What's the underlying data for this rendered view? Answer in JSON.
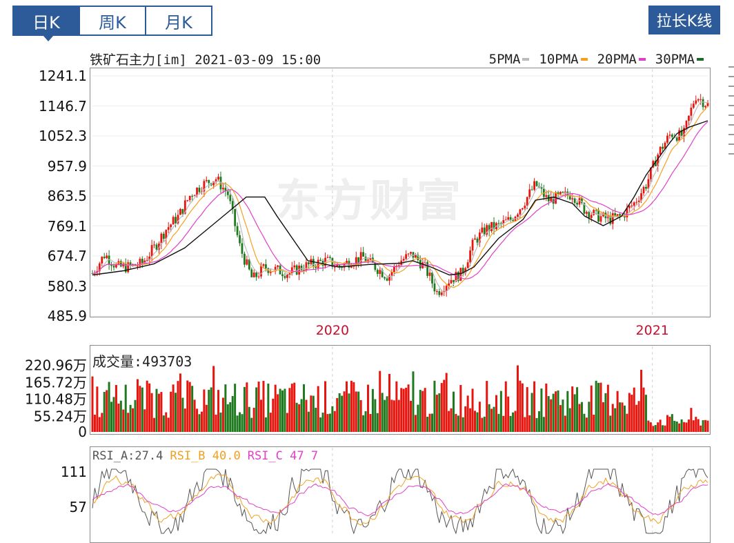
{
  "tabs": [
    {
      "label": "日K",
      "active": true
    },
    {
      "label": "周K",
      "active": false
    },
    {
      "label": "月K",
      "active": false
    }
  ],
  "extend_button": "拉长K线",
  "header": {
    "symbol": "铁矿石主力[im]",
    "datetime": "2021-03-09 15:00"
  },
  "watermark": "东方财富",
  "legend": [
    {
      "label": "5PMA",
      "color": "#bbbbbb"
    },
    {
      "label": "10PMA",
      "color": "#f5a020"
    },
    {
      "label": "20PMA",
      "color": "#e040c8"
    },
    {
      "label": "30PMA",
      "color": "#1a6b2a"
    }
  ],
  "colors": {
    "up": "#e8150e",
    "down": "#1f7a1f",
    "ma_black": "#111111",
    "grid": "#cfcfcf",
    "date_label": "#c8102e"
  },
  "volume": {
    "label": "成交量:493703",
    "ticks": [
      "220.96万",
      "165.72万",
      "110.48万",
      "55.24万",
      "0"
    ]
  },
  "rsi": {
    "labels": [
      {
        "text": "RSI_A:27.4",
        "color": "#555555"
      },
      {
        "text": "RSI_B 40.0",
        "color": "#f0a020"
      },
      {
        "text": "RSI_C 47 7",
        "color": "#e040c8"
      }
    ],
    "ticks": [
      "111",
      "57"
    ]
  },
  "chart_data": {
    "type": "line",
    "title": "铁矿石主力[im] 2021-03-09 15:00",
    "price_ticks": [
      "1241.1",
      "1146.7",
      "1052.3",
      "957.9",
      "863.5",
      "769.1",
      "674.7",
      "580.3",
      "485.9"
    ],
    "ylim": [
      485.9,
      1241.1
    ],
    "x_ticks": [
      "2020",
      "2021"
    ],
    "x_tick_positions": [
      0.39,
      0.91
    ],
    "series": [
      {
        "name": "30PMA",
        "x": [
          0,
          0.05,
          0.1,
          0.15,
          0.2,
          0.25,
          0.28,
          0.3,
          0.35,
          0.4,
          0.45,
          0.5,
          0.52,
          0.55,
          0.58,
          0.6,
          0.62,
          0.66,
          0.7,
          0.72,
          0.75,
          0.78,
          0.8,
          0.83,
          0.86,
          0.88,
          0.9,
          0.93,
          0.95,
          0.97,
          1.0
        ],
        "values": [
          615,
          628,
          650,
          700,
          780,
          860,
          860,
          800,
          660,
          640,
          648,
          652,
          660,
          640,
          615,
          620,
          640,
          730,
          790,
          850,
          860,
          840,
          800,
          770,
          800,
          860,
          930,
          1010,
          1060,
          1080,
          1100
        ]
      }
    ],
    "ohlc_close_approx": {
      "x": [
        0,
        0.02,
        0.04,
        0.06,
        0.08,
        0.1,
        0.12,
        0.14,
        0.16,
        0.18,
        0.2,
        0.22,
        0.24,
        0.26,
        0.28,
        0.3,
        0.32,
        0.34,
        0.36,
        0.38,
        0.4,
        0.42,
        0.44,
        0.46,
        0.48,
        0.5,
        0.52,
        0.54,
        0.56,
        0.58,
        0.6,
        0.62,
        0.64,
        0.66,
        0.68,
        0.7,
        0.72,
        0.74,
        0.76,
        0.78,
        0.8,
        0.82,
        0.84,
        0.86,
        0.88,
        0.9,
        0.92,
        0.94,
        0.96,
        0.98,
        1.0
      ],
      "values": [
        620,
        680,
        640,
        640,
        650,
        700,
        760,
        800,
        870,
        900,
        920,
        870,
        700,
        600,
        640,
        630,
        620,
        640,
        650,
        660,
        640,
        660,
        670,
        640,
        610,
        660,
        680,
        640,
        560,
        600,
        620,
        720,
        760,
        770,
        790,
        840,
        900,
        850,
        860,
        870,
        820,
        800,
        790,
        800,
        840,
        900,
        1000,
        1060,
        1050,
        1180,
        1150
      ]
    }
  }
}
